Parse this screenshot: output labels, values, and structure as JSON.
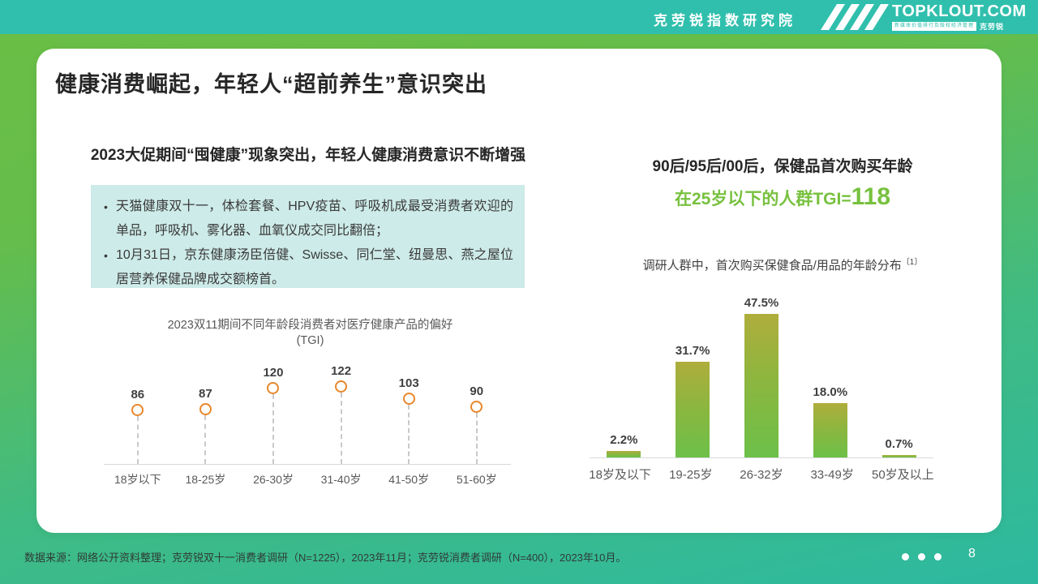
{
  "header": {
    "institute": "克劳锐指数研究院",
    "logo": {
      "main": "TOPKLOUT.COM",
      "tagline": "新媒体价值排行及版权经济管理",
      "brand": "克劳锐"
    }
  },
  "slide": {
    "title": "健康消费崛起，年轻人“超前养生”意识突出",
    "left": {
      "subtitle": "2023大促期间“囤健康”现象突出，年轻人健康消费意识不断增强",
      "bullets": [
        "天猫健康双十一，体检套餐、HPV疫苗、呼吸机成最受消费者欢迎的单品，呼吸机、雾化器、血氧仪成交同比翻倍；",
        "10月31日，京东健康汤臣倍健、Swisse、同仁堂、纽曼思、燕之屋位居营养保健品牌成交额榜首。"
      ]
    },
    "right": {
      "title": "90后/95后/00后，保健品首次购买年龄",
      "highlight_prefix": "在25岁以下的人群TGI=",
      "highlight_value": "118",
      "subtitle": "调研人群中，首次购买保健食品/用品的年龄分布",
      "subtitle_note": "〔1〕"
    }
  },
  "chart_data": [
    {
      "type": "scatter",
      "subtype": "lollipop",
      "title": "2023双11期间不同年龄段消费者对医疗健康产品的偏好",
      "title_line2": "(TGI)",
      "categories": [
        "18岁以下",
        "18-25岁",
        "26-30岁",
        "31-40岁",
        "41-50岁",
        "51-60岁"
      ],
      "values": [
        86,
        87,
        120,
        122,
        103,
        90
      ],
      "marker_color": "#E8872B",
      "grid": false,
      "legend": "none"
    },
    {
      "type": "bar",
      "title": "调研人群中，首次购买保健食品/用品的年龄分布",
      "categories": [
        "18岁及以下",
        "19-25岁",
        "26-32岁",
        "33-49岁",
        "50岁及以上"
      ],
      "values": [
        2.2,
        31.7,
        47.5,
        18.0,
        0.7
      ],
      "labels": [
        "2.2%",
        "31.7%",
        "47.5%",
        "18.0%",
        "0.7%"
      ],
      "bar_gradient": [
        "#AFAD3B",
        "#6CC049"
      ],
      "ylim": [
        0,
        50
      ],
      "grid": false,
      "legend": "none"
    }
  ],
  "footer": {
    "source": "数据来源：网络公开资料整理；克劳锐双十一消费者调研（N=1225），2023年11月；克劳锐消费者调研（N=400），2023年10月。",
    "page": "8"
  },
  "colors": {
    "topbar_teal": "#30BFAD",
    "background_green": "#6ABE44",
    "background_teal": "#2DB9A0",
    "card_white": "#FFFFFF",
    "callout_bg": "#CDEBE8",
    "accent_orange": "#E8872B",
    "accent_green": "#77C13E",
    "text_dark": "#262626",
    "text_gray": "#595959"
  }
}
